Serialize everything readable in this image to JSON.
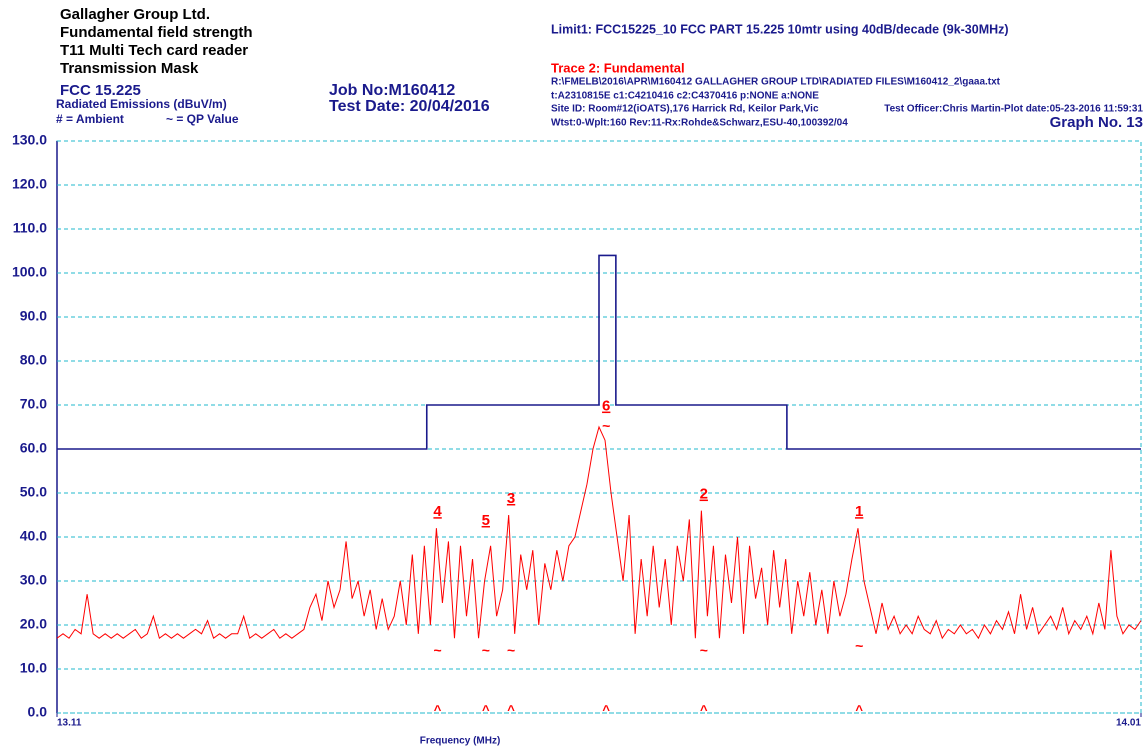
{
  "header": {
    "lines": [
      "Gallagher Group Ltd.",
      "Fundamental field strength",
      "T11 Multi Tech card reader",
      "Transmission Mask"
    ],
    "standard": "FCC 15.225",
    "units": "Radiated Emissions (dBuV/m)",
    "legend_ambient": "# = Ambient",
    "legend_qp": "~ = QP Value",
    "job": "Job No:M160412",
    "date": "Test Date: 20/04/2016",
    "limit": "Limit1: FCC15225_10    FCC PART 15.225 10mtr using 40dB/decade (9k-30MHz)",
    "trace": "Trace 2: Fundamental",
    "info": [
      "R:\\FMELB\\2016\\APR\\M160412 GALLAGHER GROUP LTD\\RADIATED FILES\\M160412_2\\gaaa.txt",
      "t:A2310815E c1:C4210416  c2:C4370416 p:NONE a:NONE",
      "Site ID: Room#12(iOATS),176 Harrick Rd, Keilor Park,Vic",
      "Wtst:0-Wplt:160 Rev:11-Rx:Rohde&Schwarz,ESU-40,100392/04"
    ],
    "officer": "Test Officer:Chris Martin-Plot date:05-23-2016 11:59:31",
    "graph": "Graph No.  13"
  },
  "chart_data": {
    "type": "line",
    "x_label": "Frequency (MHz)",
    "xlim": [
      13.11,
      14.01
    ],
    "xticks": [
      13.11,
      14.01
    ],
    "ylim": [
      0,
      130
    ],
    "yticks": [
      {
        "value": 0,
        "label": "0.0"
      },
      {
        "value": 10,
        "label": "10.0"
      },
      {
        "value": 20,
        "label": "20.0"
      },
      {
        "value": 30,
        "label": "30.0"
      },
      {
        "value": 40,
        "label": "40.0"
      },
      {
        "value": 50,
        "label": "50.0"
      },
      {
        "value": 60,
        "label": "60.0"
      },
      {
        "value": 70,
        "label": "70.0"
      },
      {
        "value": 80,
        "label": "80.0"
      },
      {
        "value": 90,
        "label": "90.0"
      },
      {
        "value": 100,
        "label": "100.0"
      },
      {
        "value": 110,
        "label": "110.0"
      },
      {
        "value": 120,
        "label": "120.0"
      },
      {
        "value": 130,
        "label": "130.0"
      }
    ],
    "grid": true,
    "series": [
      {
        "color": "#1a1a8c",
        "x": [
          13.11,
          13.417,
          13.417,
          13.56,
          13.56,
          13.574,
          13.574,
          13.716,
          13.716,
          14.01
        ],
        "values": [
          60,
          60,
          70,
          70,
          104,
          104,
          70,
          70,
          60,
          60
        ]
      },
      {
        "color": "#ff0000",
        "x": [
          13.11,
          13.115,
          13.12,
          13.125,
          13.13,
          13.135,
          13.14,
          13.145,
          13.15,
          13.155,
          13.16,
          13.165,
          13.17,
          13.175,
          13.18,
          13.185,
          13.19,
          13.195,
          13.2,
          13.205,
          13.21,
          13.215,
          13.22,
          13.225,
          13.23,
          13.235,
          13.24,
          13.245,
          13.25,
          13.255,
          13.26,
          13.265,
          13.27,
          13.275,
          13.28,
          13.285,
          13.29,
          13.295,
          13.3,
          13.305,
          13.31,
          13.315,
          13.32,
          13.325,
          13.33,
          13.335,
          13.34,
          13.345,
          13.35,
          13.355,
          13.36,
          13.365,
          13.37,
          13.375,
          13.38,
          13.385,
          13.39,
          13.395,
          13.4,
          13.405,
          13.41,
          13.415,
          13.42,
          13.425,
          13.43,
          13.435,
          13.44,
          13.445,
          13.45,
          13.455,
          13.46,
          13.465,
          13.47,
          13.475,
          13.48,
          13.485,
          13.49,
          13.495,
          13.5,
          13.505,
          13.51,
          13.515,
          13.52,
          13.525,
          13.53,
          13.535,
          13.54,
          13.545,
          13.55,
          13.555,
          13.56,
          13.565,
          13.57,
          13.575,
          13.58,
          13.585,
          13.59,
          13.595,
          13.6,
          13.605,
          13.61,
          13.615,
          13.62,
          13.625,
          13.63,
          13.635,
          13.64,
          13.645,
          13.65,
          13.655,
          13.66,
          13.665,
          13.67,
          13.675,
          13.68,
          13.685,
          13.69,
          13.695,
          13.7,
          13.705,
          13.71,
          13.715,
          13.72,
          13.725,
          13.73,
          13.735,
          13.74,
          13.745,
          13.75,
          13.755,
          13.76,
          13.765,
          13.77,
          13.775,
          13.78,
          13.785,
          13.79,
          13.795,
          13.8,
          13.805,
          13.81,
          13.815,
          13.82,
          13.825,
          13.83,
          13.835,
          13.84,
          13.845,
          13.85,
          13.855,
          13.86,
          13.865,
          13.87,
          13.875,
          13.88,
          13.885,
          13.89,
          13.895,
          13.9,
          13.905,
          13.91,
          13.915,
          13.92,
          13.925,
          13.93,
          13.935,
          13.94,
          13.945,
          13.95,
          13.955,
          13.96,
          13.965,
          13.97,
          13.975,
          13.98,
          13.985,
          13.99,
          13.995,
          14.0,
          14.005,
          14.01
        ],
        "values": [
          17,
          18,
          17,
          19,
          18,
          27,
          18,
          17,
          18,
          17,
          18,
          17,
          18,
          19,
          17,
          18,
          22,
          17,
          18,
          17,
          18,
          17,
          18,
          19,
          18,
          21,
          17,
          18,
          17,
          18,
          18,
          22,
          17,
          18,
          17,
          18,
          19,
          17,
          18,
          17,
          18,
          19,
          24,
          27,
          21,
          30,
          24,
          28,
          39,
          26,
          30,
          22,
          28,
          19,
          26,
          19,
          22,
          30,
          20,
          36,
          18,
          38,
          20,
          42,
          25,
          39,
          17,
          38,
          22,
          35,
          17,
          30,
          38,
          22,
          28,
          45,
          18,
          36,
          28,
          37,
          20,
          34,
          28,
          37,
          30,
          38,
          40,
          46,
          52,
          60,
          65,
          62,
          50,
          40,
          30,
          45,
          18,
          35,
          22,
          38,
          24,
          35,
          20,
          38,
          30,
          44,
          17,
          46,
          22,
          38,
          17,
          36,
          25,
          40,
          18,
          38,
          26,
          33,
          20,
          37,
          24,
          35,
          18,
          30,
          22,
          32,
          20,
          28,
          18,
          30,
          22,
          27,
          35,
          42,
          30,
          24,
          18,
          25,
          19,
          22,
          18,
          20,
          18,
          22,
          19,
          18,
          21,
          17,
          19,
          18,
          20,
          18,
          19,
          17,
          20,
          18,
          21,
          19,
          23,
          18,
          27,
          19,
          24,
          18,
          20,
          22,
          19,
          24,
          18,
          21,
          19,
          22,
          18,
          25,
          19,
          37,
          22,
          18,
          20,
          19,
          21
        ]
      }
    ],
    "qp_symbol": "~",
    "peak_symbol": "^",
    "markers": [
      {
        "label": "4",
        "x": 13.426,
        "peak": 42,
        "qp": 14
      },
      {
        "label": "5",
        "x": 13.466,
        "peak": 40,
        "qp": 14
      },
      {
        "label": "3",
        "x": 13.487,
        "peak": 45,
        "qp": 14
      },
      {
        "label": "6",
        "x": 13.566,
        "peak": 66,
        "qp": 65
      },
      {
        "label": "2",
        "x": 13.647,
        "peak": 46,
        "qp": 14
      },
      {
        "label": "1",
        "x": 13.776,
        "peak": 42,
        "qp": 15
      }
    ]
  }
}
